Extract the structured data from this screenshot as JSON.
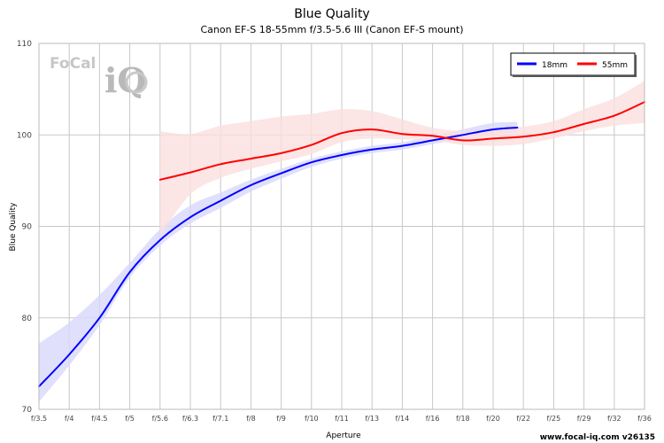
{
  "chart_data": {
    "type": "line",
    "title": "Blue Quality",
    "subtitle": "Canon EF-S 18-55mm f/3.5-5.6 III (Canon EF-S mount)",
    "xlabel": "Aperture",
    "ylabel": "Blue Quality",
    "x_ticks": [
      "f/3.5",
      "f/4",
      "f/4.5",
      "f/5",
      "f/5.6",
      "f/6.3",
      "f/7.1",
      "f/8",
      "f/9",
      "f/10",
      "f/11",
      "f/13",
      "f/14",
      "f/16",
      "f/18",
      "f/20",
      "f/22",
      "f/25",
      "f/29",
      "f/32",
      "f/36"
    ],
    "ylim": [
      70,
      110
    ],
    "y_ticks": [
      70,
      80,
      90,
      100,
      110
    ],
    "grid": true,
    "legend_position": "top-right",
    "series": [
      {
        "name": "18mm",
        "color": "#0000ff",
        "band_color": "#d8d8fb",
        "x": [
          0,
          1,
          2,
          3,
          4,
          5,
          6,
          7,
          8,
          9,
          10,
          11,
          12,
          13,
          14,
          15,
          15.8
        ],
        "values": [
          72.5,
          76.0,
          80.0,
          85.0,
          88.5,
          91.0,
          92.8,
          94.5,
          95.8,
          97.0,
          97.8,
          98.4,
          98.8,
          99.4,
          100.0,
          100.6,
          100.8
        ],
        "band_lower": [
          70.8,
          74.8,
          79.2,
          84.4,
          87.9,
          90.3,
          92.0,
          93.8,
          95.2,
          96.5,
          97.4,
          98.0,
          98.4,
          99.0,
          99.6,
          100.1,
          100.3
        ],
        "band_upper": [
          77.2,
          79.5,
          82.5,
          86.0,
          89.7,
          92.3,
          93.7,
          95.1,
          96.3,
          97.4,
          98.2,
          98.8,
          99.2,
          99.9,
          100.6,
          101.3,
          101.4
        ]
      },
      {
        "name": "55mm",
        "color": "#ff0000",
        "band_color": "#fbdede",
        "x": [
          4,
          5,
          6,
          7,
          8,
          9,
          10,
          11,
          12,
          13,
          14,
          15,
          16,
          17,
          18,
          19,
          20
        ],
        "values": [
          95.1,
          95.9,
          96.8,
          97.4,
          98.0,
          98.9,
          100.2,
          100.6,
          100.1,
          99.9,
          99.4,
          99.6,
          99.8,
          100.3,
          101.2,
          102.1,
          103.6
        ],
        "band_lower": [
          89.0,
          93.5,
          95.3,
          96.3,
          97.1,
          97.9,
          99.2,
          99.6,
          99.5,
          99.4,
          98.9,
          98.8,
          99.0,
          99.6,
          100.4,
          101.0,
          101.3
        ],
        "band_upper": [
          100.4,
          100.1,
          101.0,
          101.5,
          102.0,
          102.3,
          102.8,
          102.6,
          101.7,
          100.8,
          100.4,
          100.6,
          100.9,
          101.5,
          102.8,
          104.0,
          105.9
        ]
      }
    ]
  },
  "watermark": {
    "logo_part1": "FoCal",
    "logo_part2": "iQ",
    "credit": "www.focal-iq.com  v26135"
  },
  "colors": {
    "grid": "#c8c8c8",
    "plot_border": "#bbbbbb"
  }
}
